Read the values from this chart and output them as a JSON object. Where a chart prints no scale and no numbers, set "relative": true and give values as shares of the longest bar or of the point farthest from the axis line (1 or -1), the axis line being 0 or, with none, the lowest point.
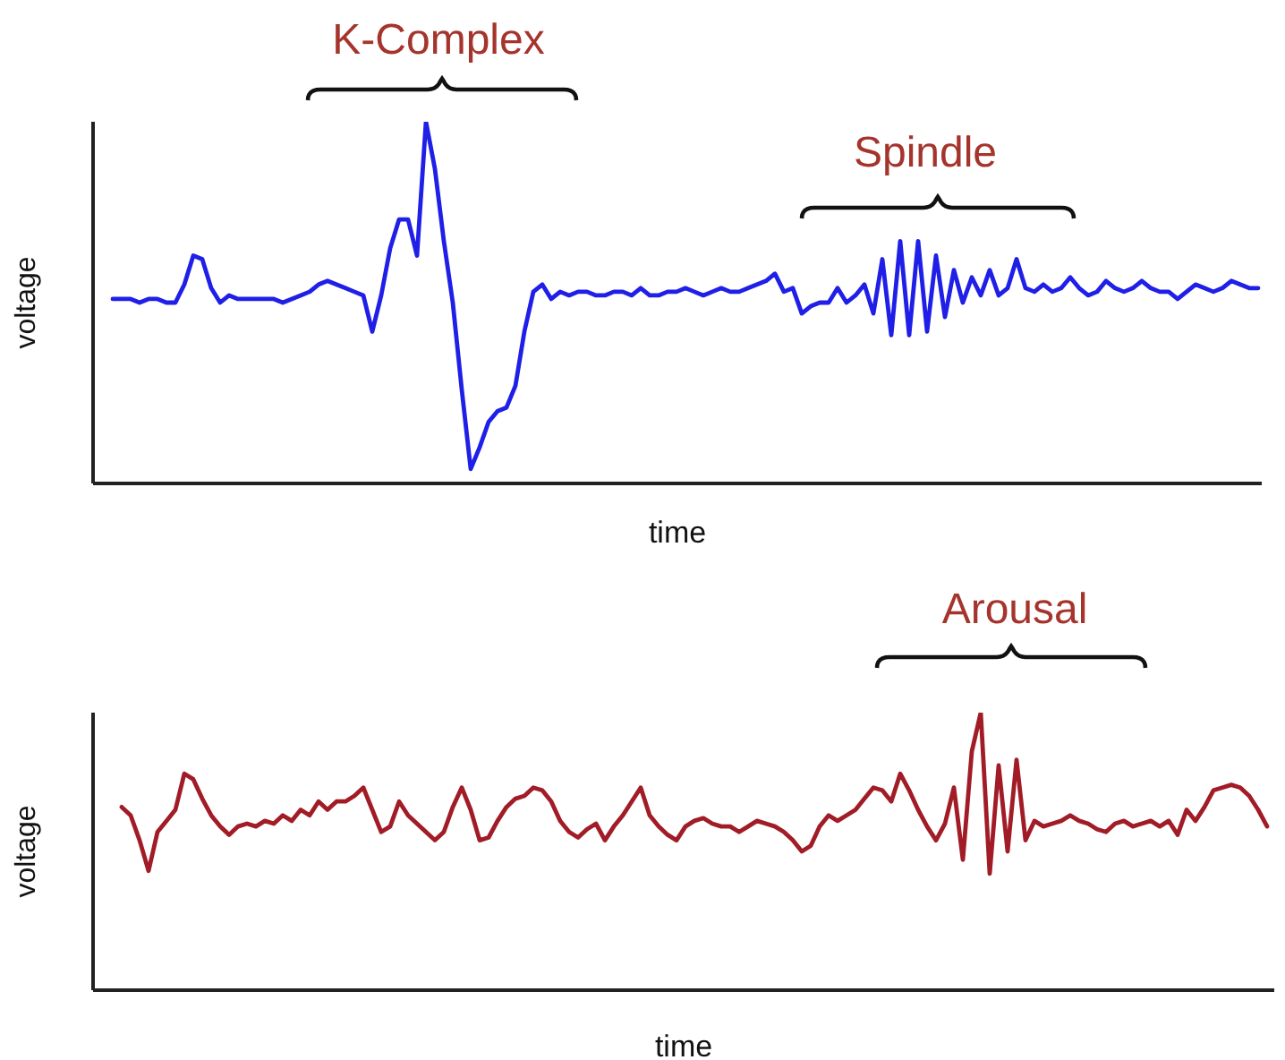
{
  "chart_data": [
    {
      "type": "line",
      "relative": true,
      "xlabel": "time",
      "ylabel": "voltage",
      "annotations": [
        "K-Complex",
        "Spindle"
      ],
      "categories": [
        null,
        null,
        null,
        null,
        null,
        null,
        null,
        null,
        null,
        null,
        null,
        null,
        null,
        null,
        null,
        null,
        null,
        null,
        null,
        null,
        null,
        null,
        null,
        null,
        null,
        null,
        null,
        null,
        null,
        null,
        null,
        null,
        null,
        null,
        null,
        null,
        null,
        null,
        null,
        null,
        null,
        null,
        null,
        null,
        null,
        null,
        null,
        null,
        null,
        null,
        null,
        null,
        null,
        null,
        null,
        null,
        null,
        null,
        null,
        null,
        null,
        null,
        null,
        null,
        null,
        null,
        null,
        null,
        null,
        null,
        null,
        null,
        null,
        null,
        null,
        null,
        null,
        null,
        null,
        null,
        null,
        null,
        null,
        null,
        null,
        null,
        null,
        null,
        null,
        null,
        null,
        null,
        null,
        null,
        null,
        null,
        null,
        null,
        null,
        null,
        null,
        null,
        null,
        null,
        null,
        null,
        null,
        null,
        null,
        null,
        null,
        null,
        null,
        null,
        null,
        null,
        null,
        null,
        null,
        null,
        null,
        null,
        null,
        null,
        null,
        null,
        null,
        null,
        null
      ],
      "series": [
        {
          "color": "#1f1fe8",
          "values": [
            0.51,
            0.51,
            0.51,
            0.5,
            0.51,
            0.51,
            0.5,
            0.5,
            0.55,
            0.63,
            0.62,
            0.54,
            0.5,
            0.52,
            0.51,
            0.51,
            0.51,
            0.51,
            0.51,
            0.5,
            0.51,
            0.52,
            0.53,
            0.55,
            0.56,
            0.55,
            0.54,
            0.53,
            0.52,
            0.42,
            0.52,
            0.65,
            0.73,
            0.73,
            0.63,
            1,
            0.87,
            0.67,
            0.5,
            0.26,
            0.04,
            0.1,
            0.17,
            0.2,
            0.21,
            0.27,
            0.42,
            0.53,
            0.55,
            0.51,
            0.53,
            0.52,
            0.53,
            0.53,
            0.52,
            0.52,
            0.53,
            0.53,
            0.52,
            0.54,
            0.52,
            0.52,
            0.53,
            0.53,
            0.54,
            0.53,
            0.52,
            0.53,
            0.54,
            0.53,
            0.53,
            0.54,
            0.55,
            0.56,
            0.58,
            0.53,
            0.54,
            0.47,
            0.49,
            0.5,
            0.5,
            0.54,
            0.5,
            0.52,
            0.55,
            0.47,
            0.62,
            0.41,
            0.67,
            0.41,
            0.67,
            0.42,
            0.63,
            0.46,
            0.59,
            0.5,
            0.57,
            0.52,
            0.59,
            0.52,
            0.54,
            0.62,
            0.54,
            0.53,
            0.55,
            0.53,
            0.54,
            0.57,
            0.54,
            0.52,
            0.53,
            0.56,
            0.54,
            0.53,
            0.54,
            0.56,
            0.54,
            0.53,
            0.53,
            0.51,
            0.53,
            0.55,
            0.54,
            0.53,
            0.54,
            0.56,
            0.55,
            0.54,
            0.54
          ]
        }
      ]
    },
    {
      "type": "line",
      "relative": true,
      "xlabel": "time",
      "ylabel": "voltage",
      "annotations": [
        "Arousal"
      ],
      "categories": [
        null,
        null,
        null,
        null,
        null,
        null,
        null,
        null,
        null,
        null,
        null,
        null,
        null,
        null,
        null,
        null,
        null,
        null,
        null,
        null,
        null,
        null,
        null,
        null,
        null,
        null,
        null,
        null,
        null,
        null,
        null,
        null,
        null,
        null,
        null,
        null,
        null,
        null,
        null,
        null,
        null,
        null,
        null,
        null,
        null,
        null,
        null,
        null,
        null,
        null,
        null,
        null,
        null,
        null,
        null,
        null,
        null,
        null,
        null,
        null,
        null,
        null,
        null,
        null,
        null,
        null,
        null,
        null,
        null,
        null,
        null,
        null,
        null,
        null,
        null,
        null,
        null,
        null,
        null,
        null,
        null,
        null,
        null,
        null,
        null,
        null,
        null,
        null,
        null,
        null,
        null,
        null,
        null,
        null,
        null,
        null,
        null,
        null,
        null,
        null,
        null,
        null,
        null,
        null,
        null,
        null,
        null,
        null,
        null,
        null,
        null,
        null,
        null,
        null,
        null,
        null,
        null,
        null,
        null,
        null,
        null,
        null,
        null,
        null,
        null,
        null,
        null,
        null,
        null
      ],
      "series": [
        {
          "color": "#a11c26",
          "values": [
            0.66,
            0.63,
            0.54,
            0.43,
            0.57,
            0.61,
            0.65,
            0.78,
            0.76,
            0.69,
            0.63,
            0.59,
            0.56,
            0.59,
            0.6,
            0.59,
            0.61,
            0.6,
            0.63,
            0.61,
            0.65,
            0.63,
            0.68,
            0.65,
            0.68,
            0.68,
            0.7,
            0.73,
            0.65,
            0.57,
            0.59,
            0.68,
            0.63,
            0.6,
            0.57,
            0.54,
            0.57,
            0.66,
            0.73,
            0.65,
            0.54,
            0.55,
            0.61,
            0.66,
            0.69,
            0.7,
            0.73,
            0.72,
            0.68,
            0.61,
            0.57,
            0.55,
            0.58,
            0.6,
            0.54,
            0.59,
            0.63,
            0.68,
            0.73,
            0.63,
            0.59,
            0.56,
            0.54,
            0.59,
            0.61,
            0.62,
            0.6,
            0.59,
            0.59,
            0.57,
            0.59,
            0.61,
            0.6,
            0.59,
            0.57,
            0.54,
            0.5,
            0.52,
            0.59,
            0.63,
            0.61,
            0.63,
            0.65,
            0.69,
            0.73,
            0.72,
            0.68,
            0.78,
            0.72,
            0.65,
            0.59,
            0.54,
            0.6,
            0.73,
            0.47,
            0.86,
            1,
            0.42,
            0.81,
            0.5,
            0.83,
            0.54,
            0.61,
            0.59,
            0.6,
            0.61,
            0.63,
            0.61,
            0.6,
            0.58,
            0.57,
            0.6,
            0.61,
            0.59,
            0.6,
            0.61,
            0.59,
            0.61,
            0.56,
            0.65,
            0.61,
            0.66,
            0.72,
            0.73,
            0.74,
            0.73,
            0.7,
            0.65,
            0.59
          ]
        }
      ]
    }
  ]
}
